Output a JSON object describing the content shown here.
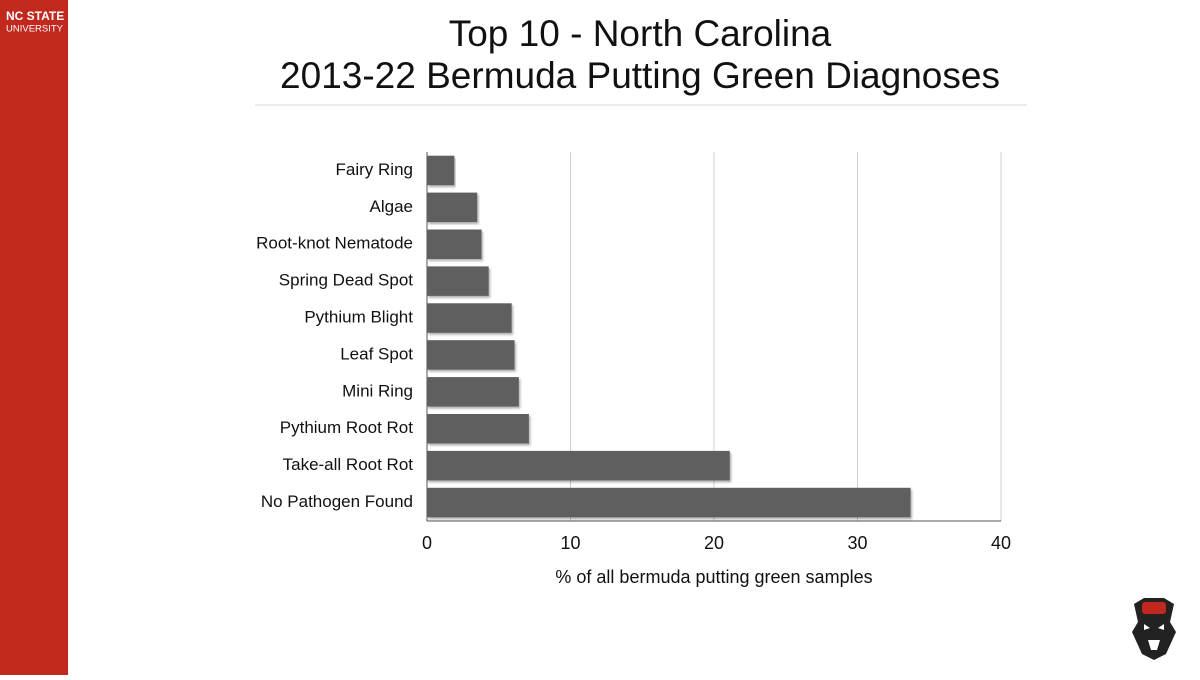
{
  "brand": {
    "name": "NC STATE",
    "sub": "UNIVERSITY"
  },
  "chart_data": {
    "type": "bar",
    "orientation": "horizontal",
    "title": "Top 10 - North Carolina",
    "subtitle": "2013-22 Bermuda Putting Green Diagnoses",
    "x_label": "% of all bermuda putting green samples",
    "categories": [
      "Fairy Ring",
      "Algae",
      "Root-knot Nematode",
      "Spring Dead Spot",
      "Pythium Blight",
      "Leaf Spot",
      "Mini Ring",
      "Pythium Root Rot",
      "Take-all Root Rot",
      "No Pathogen Found"
    ],
    "values": [
      1.9,
      3.5,
      3.8,
      4.3,
      5.9,
      6.1,
      6.4,
      7.1,
      21.1,
      33.7
    ],
    "color": "#5f5f5f",
    "xlim": [
      0,
      40
    ],
    "xticks": [
      0,
      10,
      20,
      30,
      40
    ],
    "grid": true
  }
}
